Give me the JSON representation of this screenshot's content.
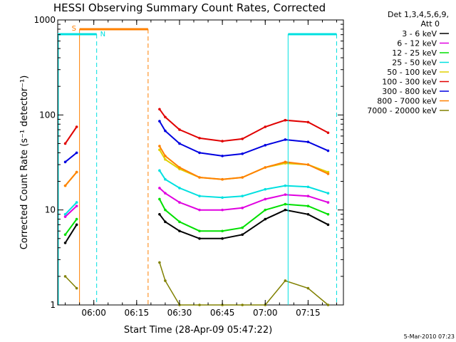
{
  "chart_data": {
    "type": "line",
    "title": "HESSI Observing Summary Count Rates, Corrected",
    "xlabel": "Start Time (28-Apr-09 05:47:22)",
    "ylabel": "Corrected Count Rate (s⁻¹ detector⁻¹)",
    "yscale": "log",
    "ylim": [
      1,
      1000
    ],
    "xlim": [
      "05:47:22",
      "07:27:22"
    ],
    "x_ticks": [
      "06:00",
      "06:15",
      "06:30",
      "06:45",
      "07:00",
      "07:15"
    ],
    "y_ticks": [
      "1",
      "10",
      "100",
      "1000"
    ],
    "grid": false,
    "legend_header": [
      "Det 1,3,4,5,6,9,",
      "Att 0"
    ],
    "legend_position": "right",
    "x_samples": [
      "05:50",
      "05:54",
      "06:23",
      "06:25",
      "06:30",
      "06:37",
      "06:45",
      "06:52",
      "07:00",
      "07:07",
      "07:15",
      "07:22"
    ],
    "series": [
      {
        "name": "3 - 6 keV",
        "color": "#000000",
        "values": [
          4.5,
          7,
          9,
          7.5,
          6,
          5,
          5,
          5.5,
          8,
          10,
          9,
          7
        ]
      },
      {
        "name": "6 - 12 keV",
        "color": "#e000e0",
        "values": [
          8.5,
          11,
          17,
          15,
          12,
          10,
          10,
          10.5,
          13,
          14.5,
          14,
          12
        ]
      },
      {
        "name": "12 - 25 keV",
        "color": "#00e000",
        "values": [
          5.5,
          8,
          13,
          10,
          7.5,
          6,
          6,
          6.5,
          10,
          11.5,
          11,
          9
        ]
      },
      {
        "name": "25 - 50 keV",
        "color": "#00e0e0",
        "values": [
          9,
          12,
          26,
          21,
          17,
          14,
          13.5,
          14,
          16.5,
          18,
          17.5,
          15
        ]
      },
      {
        "name": "50 - 100 keV",
        "color": "#e0d000",
        "values": [
          18,
          25,
          43,
          34,
          27,
          22,
          21,
          22,
          28,
          31,
          30,
          25
        ]
      },
      {
        "name": "100 - 300 keV",
        "color": "#e00000",
        "values": [
          50,
          75,
          115,
          95,
          70,
          57,
          53,
          56,
          75,
          88,
          84,
          65
        ]
      },
      {
        "name": "300 - 800 keV",
        "color": "#0000e0",
        "values": [
          32,
          40,
          86,
          68,
          50,
          40,
          37,
          39,
          48,
          55,
          52,
          42
        ]
      },
      {
        "name": "800 - 7000 keV",
        "color": "#ff8000",
        "values": [
          18,
          25,
          47,
          37,
          28,
          22,
          21,
          22,
          28,
          32,
          30,
          24
        ]
      },
      {
        "name": "7000 - 20000 keV",
        "color": "#808000",
        "values": [
          2,
          1.5,
          2.8,
          1.8,
          1,
          1,
          1,
          1,
          1,
          1.8,
          1.5,
          1
        ]
      }
    ],
    "annotations": [
      {
        "label": "S",
        "color": "#ff8000",
        "start": "05:55",
        "end": "06:19"
      },
      {
        "label": "N",
        "color": "#00e0e0",
        "start": "05:47:22",
        "end": "06:01"
      },
      {
        "label": "",
        "color": "#00e0e0",
        "start": "07:08",
        "end": "07:25"
      }
    ],
    "footer": "5-Mar-2010 07:23"
  }
}
